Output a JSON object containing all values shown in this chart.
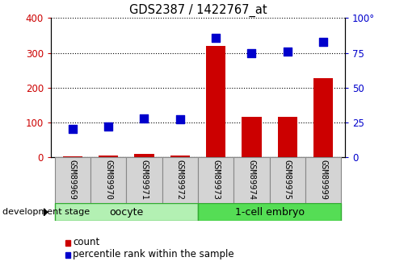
{
  "title": "GDS2387 / 1422767_at",
  "samples": [
    "GSM89969",
    "GSM89970",
    "GSM89971",
    "GSM89972",
    "GSM89973",
    "GSM89974",
    "GSM89975",
    "GSM89999"
  ],
  "count_values": [
    3,
    5,
    8,
    5,
    320,
    115,
    115,
    228
  ],
  "percentile_values": [
    20,
    22,
    28,
    27,
    86,
    75,
    76,
    83
  ],
  "groups": [
    {
      "label": "oocyte",
      "start": 0,
      "end": 4,
      "color": "#b3f0b3"
    },
    {
      "label": "1-cell embryo",
      "start": 4,
      "end": 8,
      "color": "#55dd55"
    }
  ],
  "bar_color": "#cc0000",
  "dot_color": "#0000cc",
  "left_ylim": [
    0,
    400
  ],
  "right_ylim": [
    0,
    100
  ],
  "left_yticks": [
    0,
    100,
    200,
    300,
    400
  ],
  "right_yticks": [
    0,
    25,
    50,
    75,
    100
  ],
  "right_yticklabels": [
    "0",
    "25",
    "50",
    "75",
    "100°"
  ],
  "grid_color": "black",
  "bg_color": "white",
  "tick_label_color_left": "#cc0000",
  "tick_label_color_right": "#0000cc",
  "legend_count_label": "count",
  "legend_percentile_label": "percentile rank within the sample",
  "dev_stage_label": "development stage",
  "bar_width": 0.55,
  "dot_size": 45,
  "sample_box_color": "#d4d4d4",
  "sample_box_edge": "#888888"
}
